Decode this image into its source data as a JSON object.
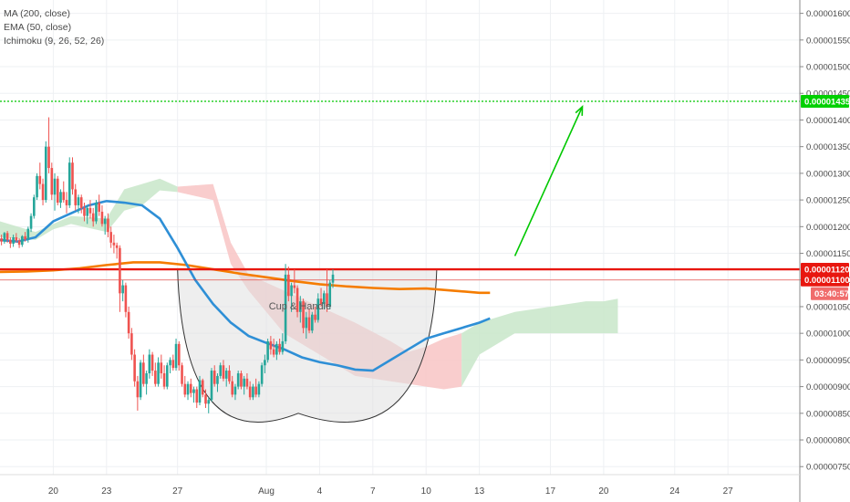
{
  "indicators": [
    "MA (200, close)",
    "EMA (50, close)",
    "Ichimoku (9, 26, 52, 26)"
  ],
  "pattern_label": "Cup & Handle",
  "countdown": "03:40:57",
  "colors": {
    "up": "#26a69a",
    "down": "#ef5350",
    "ma200": "#f57c00",
    "ema50": "#2e8fd6",
    "kumo_bull": "#c8e6c9",
    "kumo_bear": "#f8c4c4",
    "target_line": "#00c800",
    "resistance": "#e8170f",
    "cup_fill": "#e0e0e0"
  },
  "chart_data": {
    "type": "candlestick",
    "title": "",
    "xlabel": "",
    "ylabel": "",
    "ylim": [
      7.35e-06,
      1.625e-05
    ],
    "y_ticks": [
      "0.00001600",
      "0.00001550",
      "0.00001500",
      "0.00001450",
      "0.00001400",
      "0.00001350",
      "0.00001300",
      "0.00001250",
      "0.00001200",
      "0.00001150",
      "0.00001100",
      "0.00001050",
      "0.00001000",
      "0.00000950",
      "0.00000900",
      "0.00000850",
      "0.00000800",
      "0.00000750"
    ],
    "x_ticks": [
      {
        "label": "20",
        "t": 20
      },
      {
        "label": "23",
        "t": 23
      },
      {
        "label": "27",
        "t": 27
      },
      {
        "label": "Aug",
        "t": 32
      },
      {
        "label": "4",
        "t": 35
      },
      {
        "label": "7",
        "t": 38
      },
      {
        "label": "10",
        "t": 41
      },
      {
        "label": "13",
        "t": 44
      },
      {
        "label": "17",
        "t": 48
      },
      {
        "label": "20",
        "t": 51
      },
      {
        "label": "24",
        "t": 55
      },
      {
        "label": "27",
        "t": 58
      }
    ],
    "price_levels": [
      {
        "label": "0.00001435",
        "value": 1.435e-05,
        "style": "dotted",
        "color": "#00c800"
      },
      {
        "label": "0.00001120",
        "value": 1.12e-05,
        "style": "solid",
        "color": "#e8170f"
      },
      {
        "label": "0.00001100",
        "value": 1.1e-05,
        "style": "thin",
        "color": "#e8170f"
      }
    ],
    "candles_t_start": 17,
    "candles_per_day": 6,
    "candles": [
      [
        1.178,
        1.185,
        1.165,
        1.172
      ],
      [
        1.172,
        1.19,
        1.168,
        1.188
      ],
      [
        1.188,
        1.192,
        1.17,
        1.175
      ],
      [
        1.175,
        1.18,
        1.16,
        1.168
      ],
      [
        1.168,
        1.185,
        1.162,
        1.18
      ],
      [
        1.18,
        1.188,
        1.17,
        1.174
      ],
      [
        1.174,
        1.178,
        1.16,
        1.166
      ],
      [
        1.166,
        1.184,
        1.162,
        1.182
      ],
      [
        1.182,
        1.19,
        1.172,
        1.176
      ],
      [
        1.176,
        1.2,
        1.17,
        1.196
      ],
      [
        1.196,
        1.225,
        1.19,
        1.22
      ],
      [
        1.22,
        1.26,
        1.215,
        1.255
      ],
      [
        1.255,
        1.3,
        1.25,
        1.295
      ],
      [
        1.295,
        1.32,
        1.27,
        1.28
      ],
      [
        1.28,
        1.29,
        1.24,
        1.25
      ],
      [
        1.25,
        1.36,
        1.245,
        1.35
      ],
      [
        1.35,
        1.405,
        1.3,
        1.31
      ],
      [
        1.31,
        1.32,
        1.25,
        1.26
      ],
      [
        1.26,
        1.3,
        1.23,
        1.29
      ],
      [
        1.29,
        1.295,
        1.24,
        1.245
      ],
      [
        1.245,
        1.27,
        1.235,
        1.265
      ],
      [
        1.265,
        1.285,
        1.245,
        1.25
      ],
      [
        1.25,
        1.265,
        1.225,
        1.24
      ],
      [
        1.24,
        1.33,
        1.235,
        1.32
      ],
      [
        1.32,
        1.33,
        1.26,
        1.27
      ],
      [
        1.27,
        1.28,
        1.23,
        1.24
      ],
      [
        1.24,
        1.26,
        1.225,
        1.255
      ],
      [
        1.255,
        1.26,
        1.225,
        1.235
      ],
      [
        1.235,
        1.245,
        1.21,
        1.22
      ],
      [
        1.22,
        1.24,
        1.205,
        1.235
      ],
      [
        1.235,
        1.25,
        1.215,
        1.225
      ],
      [
        1.225,
        1.235,
        1.2,
        1.21
      ],
      [
        1.21,
        1.25,
        1.205,
        1.245
      ],
      [
        1.245,
        1.26,
        1.22,
        1.228
      ],
      [
        1.228,
        1.24,
        1.2,
        1.205
      ],
      [
        1.205,
        1.22,
        1.185,
        1.215
      ],
      [
        1.215,
        1.225,
        1.18,
        1.19
      ],
      [
        1.19,
        1.2,
        1.16,
        1.17
      ],
      [
        1.17,
        1.185,
        1.15,
        1.165
      ],
      [
        1.165,
        1.17,
        1.14,
        1.16
      ],
      [
        1.16,
        1.165,
        1.04,
        1.075
      ],
      [
        1.075,
        1.1,
        1.06,
        1.09
      ],
      [
        1.09,
        1.095,
        1.03,
        1.04
      ],
      [
        1.04,
        1.05,
        0.99,
        1.0
      ],
      [
        1.0,
        1.01,
        0.95,
        0.96
      ],
      [
        0.96,
        0.97,
        0.9,
        0.91
      ],
      [
        0.91,
        0.92,
        0.855,
        0.88
      ],
      [
        0.88,
        0.95,
        0.875,
        0.945
      ],
      [
        0.945,
        0.96,
        0.9,
        0.905
      ],
      [
        0.905,
        0.93,
        0.885,
        0.925
      ],
      [
        0.925,
        0.97,
        0.915,
        0.96
      ],
      [
        0.96,
        0.965,
        0.92,
        0.93
      ],
      [
        0.93,
        0.945,
        0.9,
        0.905
      ],
      [
        0.905,
        0.955,
        0.9,
        0.945
      ],
      [
        0.945,
        0.96,
        0.915,
        0.925
      ],
      [
        0.925,
        0.94,
        0.895,
        0.9
      ],
      [
        0.9,
        0.945,
        0.895,
        0.94
      ],
      [
        0.94,
        0.955,
        0.925,
        0.95
      ],
      [
        0.95,
        0.96,
        0.93,
        0.935
      ],
      [
        0.935,
        0.99,
        0.93,
        0.98
      ],
      [
        0.98,
        0.985,
        0.93,
        0.94
      ],
      [
        0.94,
        0.945,
        0.9,
        0.905
      ],
      [
        0.905,
        0.92,
        0.88,
        0.885
      ],
      [
        0.885,
        0.91,
        0.875,
        0.905
      ],
      [
        0.905,
        0.915,
        0.88,
        0.888
      ],
      [
        0.888,
        0.9,
        0.87,
        0.895
      ],
      [
        0.895,
        0.9,
        0.86,
        0.87
      ],
      [
        0.87,
        0.92,
        0.865,
        0.912
      ],
      [
        0.912,
        0.915,
        0.88,
        0.885
      ],
      [
        0.885,
        0.895,
        0.86,
        0.868
      ],
      [
        0.868,
        0.88,
        0.85,
        0.875
      ],
      [
        0.875,
        0.935,
        0.872,
        0.93
      ],
      [
        0.93,
        0.94,
        0.9,
        0.905
      ],
      [
        0.905,
        0.925,
        0.89,
        0.92
      ],
      [
        0.92,
        0.945,
        0.915,
        0.94
      ],
      [
        0.94,
        0.95,
        0.91,
        0.915
      ],
      [
        0.915,
        0.935,
        0.9,
        0.93
      ],
      [
        0.93,
        0.94,
        0.905,
        0.91
      ],
      [
        0.91,
        0.92,
        0.88,
        0.885
      ],
      [
        0.885,
        0.905,
        0.875,
        0.9
      ],
      [
        0.9,
        0.93,
        0.895,
        0.925
      ],
      [
        0.925,
        0.93,
        0.895,
        0.9
      ],
      [
        0.9,
        0.92,
        0.885,
        0.915
      ],
      [
        0.915,
        0.925,
        0.895,
        0.9
      ],
      [
        0.9,
        0.91,
        0.875,
        0.88
      ],
      [
        0.88,
        0.905,
        0.875,
        0.9
      ],
      [
        0.9,
        0.915,
        0.88,
        0.885
      ],
      [
        0.885,
        0.91,
        0.88,
        0.905
      ],
      [
        0.905,
        0.945,
        0.9,
        0.94
      ],
      [
        0.94,
        0.96,
        0.925,
        0.95
      ],
      [
        0.95,
        0.99,
        0.945,
        0.985
      ],
      [
        0.985,
        0.995,
        0.96,
        0.97
      ],
      [
        0.97,
        0.99,
        0.955,
        0.96
      ],
      [
        0.96,
        0.985,
        0.95,
        0.98
      ],
      [
        0.98,
        0.99,
        0.96,
        0.965
      ],
      [
        0.965,
        1.0,
        0.96,
        0.985
      ],
      [
        0.985,
        1.13,
        0.98,
        1.11
      ],
      [
        1.11,
        1.125,
        1.06,
        1.07
      ],
      [
        1.07,
        1.095,
        1.04,
        1.09
      ],
      [
        1.09,
        1.12,
        1.075,
        1.085
      ],
      [
        1.085,
        1.09,
        1.03,
        1.04
      ],
      [
        1.04,
        1.07,
        1.02,
        1.06
      ],
      [
        1.06,
        1.065,
        1.0,
        1.01
      ],
      [
        1.01,
        1.04,
        0.99,
        1.03
      ],
      [
        1.03,
        1.045,
        1.0,
        1.005
      ],
      [
        1.005,
        1.04,
        1.0,
        1.035
      ],
      [
        1.035,
        1.05,
        1.02,
        1.025
      ],
      [
        1.025,
        1.075,
        1.02,
        1.065
      ],
      [
        1.065,
        1.085,
        1.05,
        1.055
      ],
      [
        1.055,
        1.08,
        1.045,
        1.075
      ],
      [
        1.075,
        1.12,
        1.04,
        1.05
      ],
      [
        1.05,
        1.1,
        1.045,
        1.095
      ],
      [
        1.095,
        1.12,
        1.085,
        1.11
      ]
    ],
    "series": [
      {
        "name": "MA (200, close)",
        "points": [
          [
            17,
            1.115
          ],
          [
            18.5,
            1.116
          ],
          [
            20,
            1.118
          ],
          [
            21.5,
            1.122
          ],
          [
            23,
            1.128
          ],
          [
            24.5,
            1.133
          ],
          [
            26,
            1.133
          ],
          [
            27.5,
            1.128
          ],
          [
            29,
            1.12
          ],
          [
            30.5,
            1.112
          ],
          [
            32,
            1.105
          ],
          [
            33.5,
            1.098
          ],
          [
            35,
            1.092
          ],
          [
            36.5,
            1.088
          ],
          [
            38,
            1.085
          ],
          [
            39.5,
            1.083
          ],
          [
            41,
            1.084
          ],
          [
            42.5,
            1.08
          ],
          [
            44,
            1.076
          ],
          [
            44.6,
            1.076
          ]
        ]
      },
      {
        "name": "EMA (50, close)",
        "points": [
          [
            17,
            1.175
          ],
          [
            18,
            1.172
          ],
          [
            19,
            1.18
          ],
          [
            20,
            1.21
          ],
          [
            21,
            1.225
          ],
          [
            22,
            1.24
          ],
          [
            23,
            1.248
          ],
          [
            24,
            1.245
          ],
          [
            25,
            1.24
          ],
          [
            26,
            1.215
          ],
          [
            27,
            1.16
          ],
          [
            28,
            1.1
          ],
          [
            29,
            1.055
          ],
          [
            30,
            1.02
          ],
          [
            31,
            0.995
          ],
          [
            32,
            0.982
          ],
          [
            33,
            0.97
          ],
          [
            34,
            0.955
          ],
          [
            35,
            0.946
          ],
          [
            36,
            0.94
          ],
          [
            37,
            0.932
          ],
          [
            38,
            0.93
          ],
          [
            39,
            0.95
          ],
          [
            40,
            0.97
          ],
          [
            41,
            0.99
          ],
          [
            42,
            1.0
          ],
          [
            43,
            1.01
          ],
          [
            44,
            1.02
          ],
          [
            44.6,
            1.028
          ]
        ]
      }
    ],
    "ichimoku_cloud": [
      {
        "type": "bull",
        "points": [
          [
            17,
            1.21
          ],
          [
            19,
            1.19
          ],
          [
            20,
            1.205
          ],
          [
            21,
            1.22
          ],
          [
            23,
            1.215
          ],
          [
            24,
            1.27
          ],
          [
            25,
            1.28
          ],
          [
            26,
            1.29
          ],
          [
            27,
            1.275
          ]
        ],
        "lower": [
          [
            17,
            1.18
          ],
          [
            19,
            1.175
          ],
          [
            20,
            1.195
          ],
          [
            21,
            1.205
          ],
          [
            23,
            1.19
          ],
          [
            24,
            1.23
          ],
          [
            25,
            1.24
          ],
          [
            26,
            1.268
          ],
          [
            27,
            1.265
          ]
        ]
      },
      {
        "type": "bear",
        "points": [
          [
            27,
            1.275
          ],
          [
            29,
            1.28
          ],
          [
            30,
            1.17
          ],
          [
            31,
            1.11
          ],
          [
            33,
            1.08
          ],
          [
            35,
            1.05
          ],
          [
            37,
            1.02
          ],
          [
            39,
            0.985
          ],
          [
            40,
            0.965
          ],
          [
            41,
            0.975
          ],
          [
            42,
            0.99
          ],
          [
            43,
            1.0
          ]
        ],
        "lower": [
          [
            27,
            1.265
          ],
          [
            29,
            1.25
          ],
          [
            30,
            1.13
          ],
          [
            31,
            1.08
          ],
          [
            33,
            1.0
          ],
          [
            35,
            0.96
          ],
          [
            37,
            0.92
          ],
          [
            39,
            0.91
          ],
          [
            40,
            0.905
          ],
          [
            41,
            0.9
          ],
          [
            42,
            0.895
          ],
          [
            43,
            0.9
          ]
        ]
      },
      {
        "type": "bull",
        "points": [
          [
            43,
            1.0
          ],
          [
            44,
            1.02
          ],
          [
            46,
            1.04
          ],
          [
            48,
            1.05
          ],
          [
            50,
            1.06
          ],
          [
            51,
            1.06
          ],
          [
            51.8,
            1.065
          ]
        ],
        "lower": [
          [
            43,
            0.9
          ],
          [
            44,
            0.96
          ],
          [
            46,
            1.0
          ],
          [
            48,
            1.0
          ],
          [
            50,
            1.0
          ],
          [
            51,
            1.0
          ],
          [
            51.8,
            1.0
          ]
        ]
      }
    ],
    "cup_curve": {
      "left": [
        27,
        1.12
      ],
      "bottom": [
        33.8,
        0.85
      ],
      "right": [
        41.6,
        1.12
      ]
    },
    "forecast_arrow": {
      "from": [
        46.0,
        1.145
      ],
      "to": [
        49.8,
        1.425
      ]
    }
  }
}
